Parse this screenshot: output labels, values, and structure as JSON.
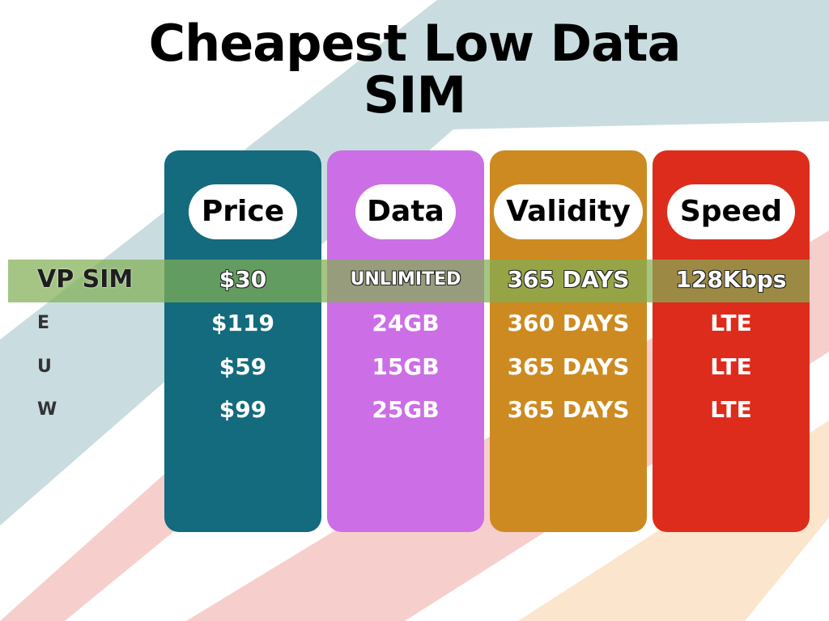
{
  "title": "Cheapest Low Data SIM",
  "table": {
    "columns": [
      "Price",
      "Data",
      "Validity",
      "Speed"
    ],
    "rows": [
      {
        "label": "VP SIM",
        "cells": [
          "$30",
          "UNLIMITED",
          "365 DAYS",
          "128Kbps"
        ]
      },
      {
        "label": "E",
        "cells": [
          "$119",
          "24GB",
          "360 DAYS",
          "LTE"
        ]
      },
      {
        "label": "U",
        "cells": [
          "$59",
          "15GB",
          "365 DAYS",
          "LTE"
        ]
      },
      {
        "label": "W",
        "cells": [
          "$99",
          "25GB",
          "365 DAYS",
          "LTE"
        ]
      }
    ]
  }
}
